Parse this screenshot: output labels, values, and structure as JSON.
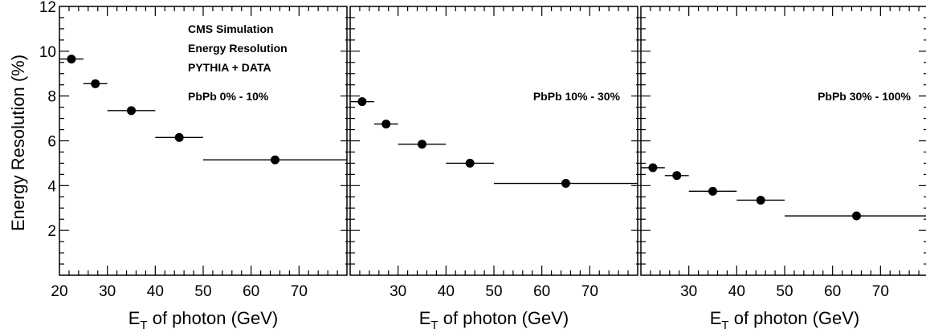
{
  "chart_data": {
    "type": "scatter",
    "ylabel": "Energy Resolution (%)",
    "ylim": [
      0,
      12
    ],
    "y_ticks": [
      "2",
      "4",
      "6",
      "8",
      "10",
      "12"
    ],
    "xlim": [
      20,
      80
    ],
    "x_ticks_first": [
      "20",
      "30",
      "40",
      "50",
      "60",
      "70"
    ],
    "x_ticks_rest": [
      "30",
      "40",
      "50",
      "60",
      "70"
    ],
    "xlabel_main": "E",
    "xlabel_sub": "T",
    "xlabel_rest": " of photon (GeV)",
    "x_bins": [
      [
        20,
        25
      ],
      [
        25,
        30
      ],
      [
        30,
        40
      ],
      [
        40,
        50
      ],
      [
        50,
        80
      ]
    ],
    "x_centers": [
      22.5,
      27.5,
      35,
      45,
      65
    ],
    "annotations": [
      "CMS Simulation",
      "Energy Resolution",
      "PYTHIA + DATA"
    ],
    "panels": [
      {
        "label": "PbPb 0% - 10%",
        "values": [
          9.65,
          8.55,
          7.35,
          6.15,
          5.15
        ]
      },
      {
        "label": "PbPb 10% - 30%",
        "values": [
          7.75,
          6.75,
          5.85,
          5.0,
          4.1
        ]
      },
      {
        "label": "PbPb 30% - 100%",
        "values": [
          4.8,
          4.45,
          3.75,
          3.35,
          2.65
        ]
      }
    ]
  }
}
